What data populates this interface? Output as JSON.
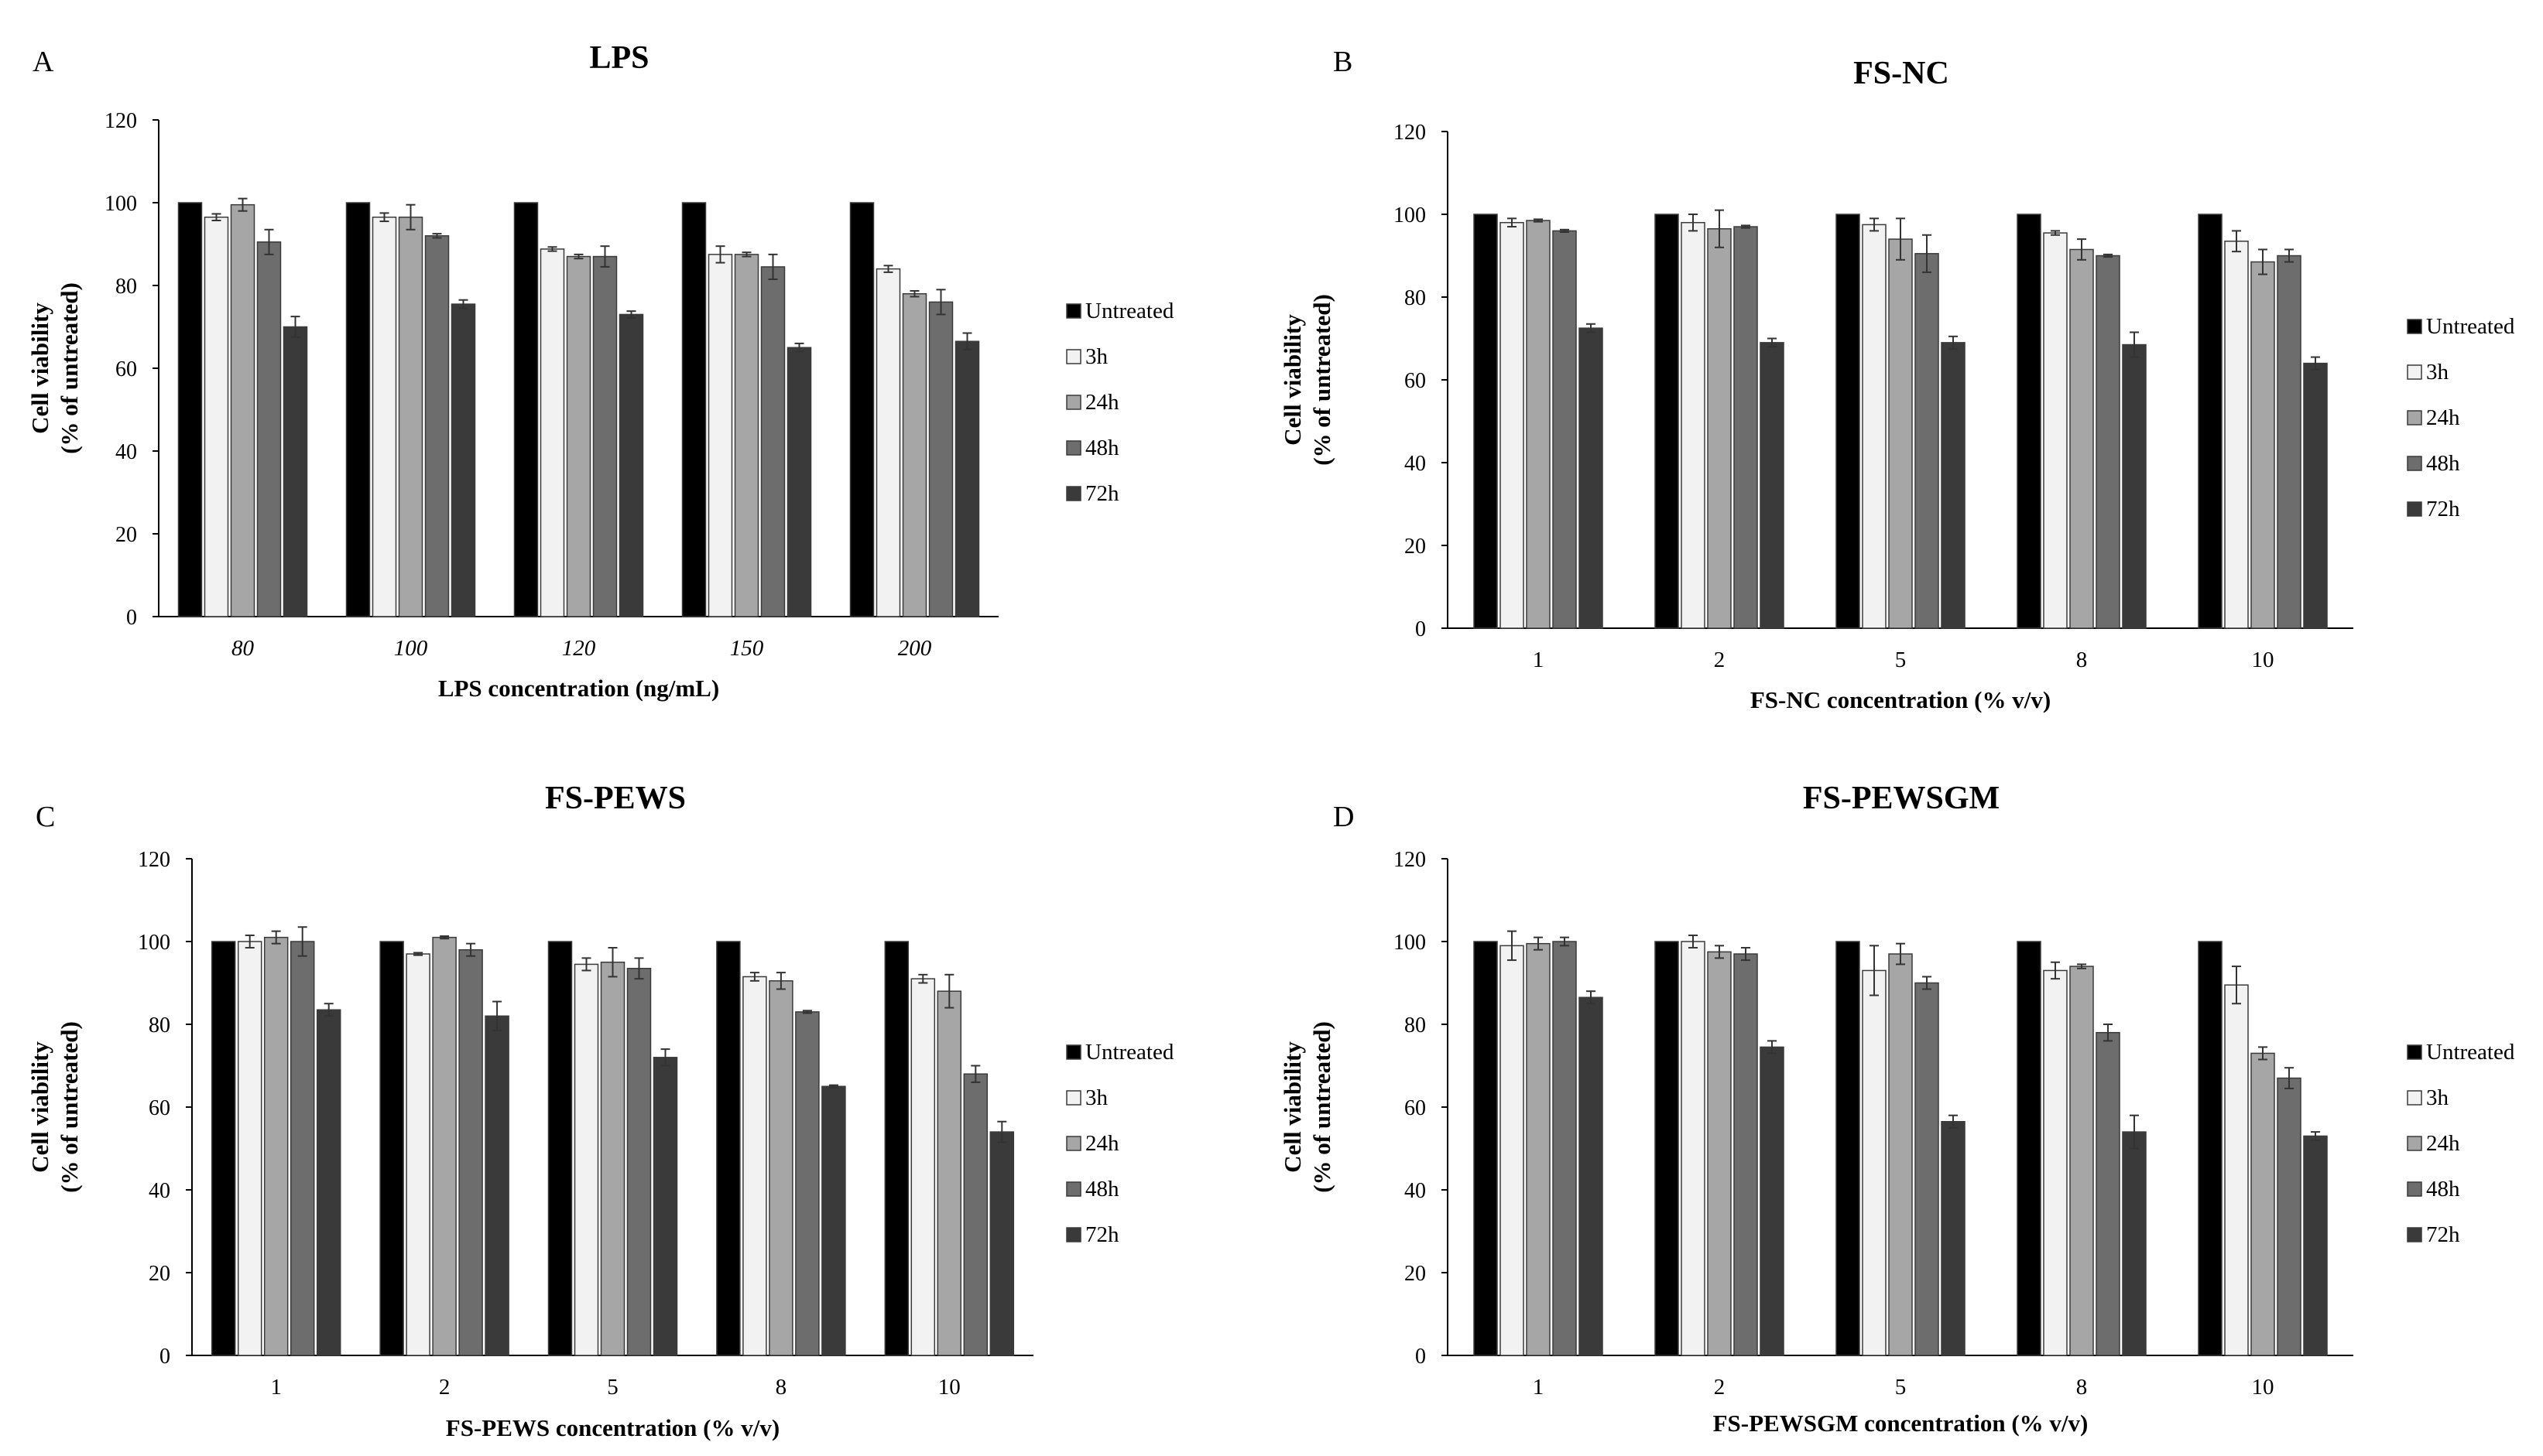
{
  "figure": {
    "series_names": [
      "Untreated",
      "3h",
      "24h",
      "48h",
      "72h"
    ],
    "series_colors": [
      "#000000",
      "#f2f2f2",
      "#a6a6a6",
      "#6d6d6d",
      "#3a3a3a"
    ],
    "bar_stroke": "#3a3a3a"
  },
  "chart_data": [
    {
      "panel": "A",
      "type": "bar",
      "title": "LPS",
      "xlabel": "LPS concentration (ng/mL)",
      "ylabel_line1": "Cell viability",
      "ylabel_line2": "(% of untreated)",
      "ylim": [
        0,
        120
      ],
      "yticks": [
        0,
        20,
        40,
        60,
        80,
        100,
        120
      ],
      "categories": [
        "80",
        "100",
        "120",
        "150",
        "200"
      ],
      "category_italic": true,
      "series": [
        {
          "name": "Untreated",
          "values": [
            100,
            100,
            100,
            100,
            100
          ],
          "errors": [
            0,
            0,
            0,
            0,
            0
          ]
        },
        {
          "name": "3h",
          "values": [
            96.5,
            96.5,
            88.8,
            87.5,
            84
          ],
          "errors": [
            0.8,
            1,
            0.5,
            2,
            0.8
          ]
        },
        {
          "name": "24h",
          "values": [
            99.5,
            96.5,
            87,
            87.5,
            78
          ],
          "errors": [
            1.5,
            3,
            0.5,
            0.5,
            0.7
          ]
        },
        {
          "name": "48h",
          "values": [
            90.5,
            92,
            87,
            84.5,
            76
          ],
          "errors": [
            3,
            0.5,
            2.5,
            3,
            3
          ]
        },
        {
          "name": "72h",
          "values": [
            70,
            75.5,
            73,
            65,
            66.5
          ],
          "errors": [
            2.5,
            1,
            0.8,
            1,
            2
          ]
        }
      ]
    },
    {
      "panel": "B",
      "type": "bar",
      "title": "FS-NC",
      "xlabel": "FS-NC concentration (% v/v)",
      "ylabel_line1": "Cell viability",
      "ylabel_line2": "(% of untreated)",
      "ylim": [
        0,
        120
      ],
      "yticks": [
        0,
        20,
        40,
        60,
        80,
        100,
        120
      ],
      "categories": [
        "1",
        "2",
        "5",
        "8",
        "10"
      ],
      "category_italic": false,
      "series": [
        {
          "name": "Untreated",
          "values": [
            100,
            100,
            100,
            100,
            100
          ],
          "errors": [
            0,
            0,
            0,
            0,
            0
          ]
        },
        {
          "name": "3h",
          "values": [
            98,
            98,
            97.5,
            95.5,
            93.5
          ],
          "errors": [
            1,
            2,
            1.5,
            0.5,
            2.5
          ]
        },
        {
          "name": "24h",
          "values": [
            98.5,
            96.5,
            94,
            91.5,
            88.5
          ],
          "errors": [
            0.3,
            4.5,
            5,
            2.5,
            3
          ]
        },
        {
          "name": "48h",
          "values": [
            96,
            97,
            90.5,
            90,
            90
          ],
          "errors": [
            0.3,
            0.3,
            4.5,
            0.3,
            1.5
          ]
        },
        {
          "name": "72h",
          "values": [
            72.5,
            69,
            69,
            68.5,
            64
          ],
          "errors": [
            1,
            1,
            1.5,
            3,
            1.5
          ]
        }
      ]
    },
    {
      "panel": "C",
      "type": "bar",
      "title": "FS-PEWS",
      "xlabel": "FS-PEWS concentration (% v/v)",
      "ylabel_line1": "Cell viability",
      "ylabel_line2": "(% of untreated)",
      "ylim": [
        0,
        120
      ],
      "yticks": [
        0,
        20,
        40,
        60,
        80,
        100,
        120
      ],
      "categories": [
        "1",
        "2",
        "5",
        "8",
        "10"
      ],
      "category_italic": false,
      "series": [
        {
          "name": "Untreated",
          "values": [
            100,
            100,
            100,
            100,
            100
          ],
          "errors": [
            0,
            0,
            0,
            0,
            0
          ]
        },
        {
          "name": "3h",
          "values": [
            100,
            97,
            94.5,
            91.5,
            91
          ],
          "errors": [
            1.5,
            0.3,
            1.5,
            1,
            1
          ]
        },
        {
          "name": "24h",
          "values": [
            101,
            101,
            95,
            90.5,
            88
          ],
          "errors": [
            1.5,
            0.3,
            3.5,
            2,
            4
          ]
        },
        {
          "name": "48h",
          "values": [
            100,
            98,
            93.5,
            83,
            68
          ],
          "errors": [
            3.5,
            1.5,
            2.5,
            0.3,
            2
          ]
        },
        {
          "name": "72h",
          "values": [
            83.5,
            82,
            72,
            65,
            54
          ],
          "errors": [
            1.5,
            3.5,
            2,
            0.3,
            2.5
          ]
        }
      ]
    },
    {
      "panel": "D",
      "type": "bar",
      "title": "FS-PEWSGM",
      "xlabel": "FS-PEWSGM concentration (% v/v)",
      "ylabel_line1": "Cell viability",
      "ylabel_line2": "(% of untreated)",
      "ylim": [
        0,
        120
      ],
      "yticks": [
        0,
        20,
        40,
        60,
        80,
        100,
        120
      ],
      "categories": [
        "1",
        "2",
        "5",
        "8",
        "10"
      ],
      "category_italic": false,
      "series": [
        {
          "name": "Untreated",
          "values": [
            100,
            100,
            100,
            100,
            100
          ],
          "errors": [
            0,
            0,
            0,
            0,
            0
          ]
        },
        {
          "name": "3h",
          "values": [
            99,
            100,
            93,
            93,
            89.5
          ],
          "errors": [
            3.5,
            1.5,
            6,
            2,
            4.5
          ]
        },
        {
          "name": "24h",
          "values": [
            99.5,
            97.5,
            97,
            94,
            73
          ],
          "errors": [
            1.5,
            1.5,
            2.5,
            0.5,
            1.5
          ]
        },
        {
          "name": "48h",
          "values": [
            100,
            97,
            90,
            78,
            67
          ],
          "errors": [
            1,
            1.5,
            1.5,
            2,
            2.5
          ]
        },
        {
          "name": "72h",
          "values": [
            86.5,
            74.5,
            56.5,
            54,
            53
          ],
          "errors": [
            1.5,
            1.5,
            1.5,
            4,
            1
          ]
        }
      ]
    }
  ]
}
